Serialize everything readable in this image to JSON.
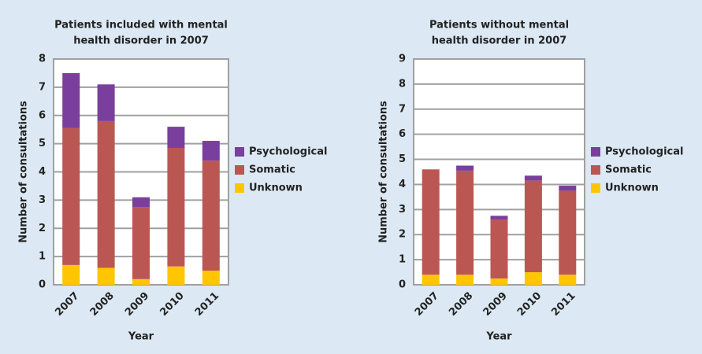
{
  "chart_data": [
    {
      "type": "bar",
      "stacked": true,
      "title_lines": [
        "Patients included with mental",
        "health disorder in 2007"
      ],
      "xlabel": "Year",
      "ylabel": "Number of consultations",
      "categories": [
        "2007",
        "2008",
        "2009",
        "2010",
        "2011"
      ],
      "series": [
        {
          "name": "Psychological",
          "color": "#7a3f9d",
          "values": [
            1.95,
            1.3,
            0.35,
            0.75,
            0.7
          ]
        },
        {
          "name": "Somatic",
          "color": "#bb5753",
          "values": [
            4.85,
            5.2,
            2.55,
            4.2,
            3.9
          ]
        },
        {
          "name": "Unknown",
          "color": "#ffc600",
          "values": [
            0.7,
            0.6,
            0.2,
            0.65,
            0.5
          ]
        }
      ],
      "ylim": [
        0,
        8
      ],
      "yticks": [
        0,
        1,
        2,
        3,
        4,
        5,
        6,
        7,
        8
      ],
      "grid": true
    },
    {
      "type": "bar",
      "stacked": true,
      "title_lines": [
        "Patients without mental",
        "health disorder in 2007"
      ],
      "xlabel": "Year",
      "ylabel": "Number of consultations",
      "categories": [
        "2007",
        "2008",
        "2009",
        "2010",
        "2011"
      ],
      "series": [
        {
          "name": "Psychological",
          "color": "#7a3f9d",
          "values": [
            0,
            0.2,
            0.15,
            0.2,
            0.2
          ]
        },
        {
          "name": "Somatic",
          "color": "#bb5753",
          "values": [
            4.2,
            4.15,
            2.35,
            3.65,
            3.35
          ]
        },
        {
          "name": "Unknown",
          "color": "#ffc600",
          "values": [
            0.4,
            0.4,
            0.25,
            0.5,
            0.4
          ]
        }
      ],
      "ylim": [
        0,
        9
      ],
      "yticks": [
        0,
        1,
        2,
        3,
        4,
        5,
        6,
        7,
        8,
        9
      ],
      "grid": true
    }
  ]
}
